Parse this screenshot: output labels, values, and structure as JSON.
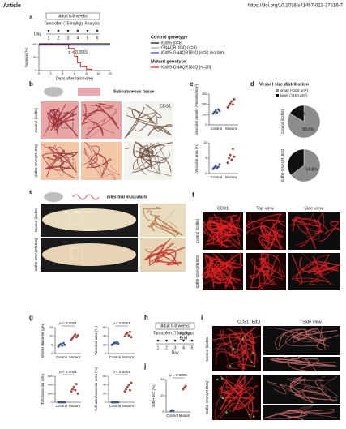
{
  "header": {
    "label": "Article",
    "doi": "https://doi.org/10.1038/s41467-023-37516-7"
  },
  "a": {
    "label": "a",
    "timeline": {
      "title": "Adult 6-8 weeks",
      "treatment": "Tamoxifen (75 mg/kg)",
      "analysis": "Analysis",
      "day": "Day",
      "days": [
        "1",
        "2",
        "3",
        "4",
        "5",
        "6"
      ]
    },
    "legend": {
      "control": "Control genotype",
      "mutant": "Mutant genotype"
    },
    "chart_data": {
      "type": "line",
      "ylabel": "Survival (%)",
      "xlabel": "Days after tamoxifen",
      "annotation": "p < 0.0001",
      "xlim": [
        0,
        12
      ],
      "ylim": [
        0,
        100
      ],
      "xticks": [
        0,
        2,
        4,
        6,
        8,
        10,
        12
      ],
      "yticks": [
        0,
        50,
        100
      ],
      "series": [
        {
          "name": "iCdh5 (n=8)",
          "color": "#000000",
          "x": [
            0,
            12
          ],
          "values": [
            100,
            100
          ]
        },
        {
          "name": "GNAQR183Q (n=9)",
          "color": "#9e9e9e",
          "x": [
            0,
            12
          ],
          "values": [
            100,
            100
          ]
        },
        {
          "name": "iCdh5-GNAQR183Q (n=5) (no tam)",
          "color": "#3a3ad0",
          "x": [
            0,
            12
          ],
          "values": [
            100,
            100
          ]
        },
        {
          "name": "iCdh5-GNAQR183Q (n=20)",
          "color": "#d01c1c",
          "x": [
            0,
            5,
            5,
            6,
            6,
            6.5,
            6.5,
            7,
            7,
            8,
            8,
            9
          ],
          "values": [
            100,
            100,
            85,
            85,
            55,
            55,
            30,
            30,
            15,
            15,
            5,
            5
          ]
        }
      ]
    }
  },
  "b": {
    "label": "b",
    "tissue": "Subcutaneous tissue",
    "stain": "CD31",
    "rows": [
      "Control (iCdh5)",
      "iCdh5-GNAQR183Q"
    ]
  },
  "c": {
    "label": "c",
    "charts": [
      {
        "type": "dot",
        "ylabel": "Vascular density (vessels/mm²)",
        "ylim": [
          0,
          300
        ],
        "yticks": [
          0,
          100,
          200,
          300
        ],
        "series": [
          {
            "name": "Control",
            "color": "#3f5ea8",
            "values": [
              110,
              125,
              140,
              120,
              150,
              135
            ]
          },
          {
            "name": "Mutant",
            "color": "#c0392b",
            "values": [
              170,
              190,
              210,
              230,
              200,
              250
            ]
          }
        ]
      },
      {
        "type": "dot",
        "ylabel": "Vascular area (%)",
        "ylim": [
          0,
          10
        ],
        "yticks": [
          0,
          5,
          10
        ],
        "series": [
          {
            "name": "Control",
            "color": "#3f5ea8",
            "values": [
              1.5,
              2,
              2.5,
              1.8,
              2.2,
              3
            ]
          },
          {
            "name": "Mutant",
            "color": "#c0392b",
            "values": [
              3.5,
              5,
              6,
              4.5,
              8,
              5.5
            ]
          }
        ]
      }
    ]
  },
  "d": {
    "label": "d",
    "title": "Vessel size distribution",
    "charts": [
      {
        "type": "pie",
        "row": "Control (iCdh5)",
        "categories": [
          "small (<100 µm²)",
          "large (>100 µm²)"
        ],
        "colors": [
          "#8c8c8c",
          "#111111"
        ],
        "values": [
          83.6,
          16.4
        ],
        "value_labels": [
          "83.6%",
          "16.4%"
        ]
      },
      {
        "type": "pie",
        "row": "iCdh5-GNAQR183Q",
        "categories": [
          "small (<100 µm²)",
          "large (>100 µm²)"
        ],
        "colors": [
          "#8c8c8c",
          "#111111"
        ],
        "values": [
          64.8,
          35.2
        ],
        "value_labels": [
          "64.8%",
          "35.2%"
        ]
      }
    ]
  },
  "e": {
    "label": "e",
    "tissue": "Intestinal muscularis",
    "rows": [
      "Control (iCdh5)",
      "iCdh5-GNAQR183Q"
    ]
  },
  "f": {
    "label": "f",
    "stain": "CD31",
    "columns": [
      "Top view",
      "Side view"
    ],
    "rows": [
      "Control (iCdh5)",
      "iCdh5-GNAQR183Q"
    ]
  },
  "g": {
    "label": "g",
    "charts": [
      {
        "type": "dot",
        "ylabel": "Vessel diameter (µm)",
        "annotation": "p < 0.0001",
        "ylim": [
          0,
          15
        ],
        "yticks": [
          0,
          5,
          10,
          15
        ],
        "series": [
          {
            "name": "Control",
            "color": "#3f5ea8",
            "values": [
              4,
              5,
              5.5,
              4.5,
              6,
              5
            ]
          },
          {
            "name": "Mutant",
            "color": "#c0392b",
            "values": [
              8,
              9,
              10,
              11,
              9.5,
              10.5
            ]
          }
        ]
      },
      {
        "type": "dot",
        "ylabel": "Vascular area (%)",
        "annotation": "p < 0.0001",
        "ylim": [
          0,
          60
        ],
        "yticks": [
          0,
          20,
          40,
          60
        ],
        "series": [
          {
            "name": "Control",
            "color": "#3f5ea8",
            "values": [
              20,
              22,
              25,
              24,
              27,
              23
            ]
          },
          {
            "name": "Mutant",
            "color": "#c0392b",
            "values": [
              40,
              45,
              48,
              42,
              50,
              38
            ]
          }
        ]
      },
      {
        "type": "dot",
        "ylabel": "Tufts/vascular area",
        "annotation": "p < 0.0001",
        "ylim": [
          0,
          600
        ],
        "yticks": [
          0,
          200,
          400,
          600
        ],
        "series": [
          {
            "name": "Control",
            "color": "#3f5ea8",
            "values": [
              0,
              0,
              0,
              0,
              0,
              0
            ]
          },
          {
            "name": "Mutant",
            "color": "#c0392b",
            "values": [
              250,
              300,
              350,
              280,
              420,
              200
            ]
          }
        ]
      },
      {
        "type": "dot",
        "ylabel": "Tuft area/vascular area (%)",
        "annotation": "p < 0.0001",
        "ylim": [
          0,
          60
        ],
        "yticks": [
          0,
          20,
          40,
          60
        ],
        "series": [
          {
            "name": "Control",
            "color": "#3f5ea8",
            "values": [
              0,
              0,
              0,
              0,
              0,
              0
            ]
          },
          {
            "name": "Mutant",
            "color": "#c0392b",
            "values": [
              25,
              30,
              35,
              40,
              28,
              45
            ]
          }
        ]
      }
    ]
  },
  "h": {
    "label": "h",
    "timeline": {
      "title": "Adult 6-8 weeks",
      "treatment": "Tamoxifen (75mg/kg)",
      "analysis": "Analysis",
      "edu": "EdU",
      "day": "Day",
      "days": [
        "1",
        "2",
        "3",
        "4",
        "5"
      ]
    }
  },
  "i": {
    "label": "i",
    "stains": [
      "CD31",
      "EdU"
    ],
    "column": "Side view",
    "rows": [
      "Control (iCdh5)",
      "iCdh5-GNAQR183Q"
    ]
  },
  "j": {
    "label": "j",
    "chart_data": {
      "type": "dot",
      "ylabel": "EdU+ EC (%)",
      "annotation": "p = 0.0005",
      "ylim": [
        0,
        20
      ],
      "yticks": [
        0,
        10,
        20
      ],
      "series": [
        {
          "name": "Control",
          "color": "#3f5ea8",
          "values": [
            0.5,
            1,
            0.8
          ]
        },
        {
          "name": "Mutant",
          "color": "#c0392b",
          "values": [
            14,
            15,
            16
          ]
        }
      ]
    }
  }
}
